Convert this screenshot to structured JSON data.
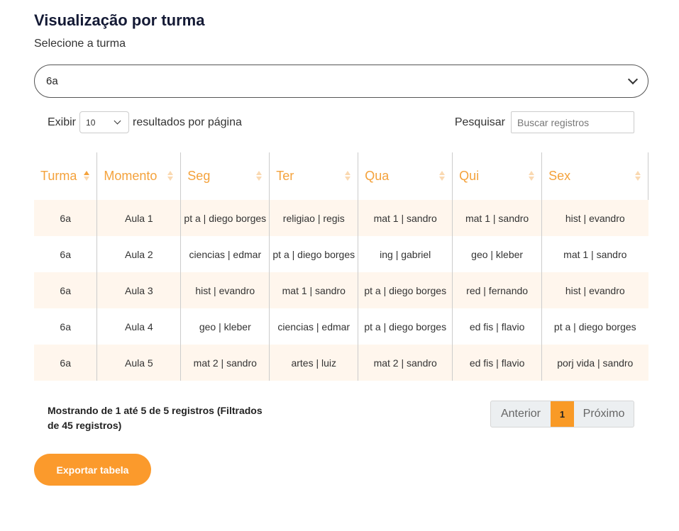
{
  "header": {
    "title": "Visualização por turma",
    "select_label": "Selecione a turma",
    "selected_class": "6a"
  },
  "controls": {
    "show_label": "Exibir",
    "page_size": "10",
    "per_page_label": "resultados por página",
    "search_label": "Pesquisar",
    "search_placeholder": "Buscar registros"
  },
  "table": {
    "columns": [
      "Turma",
      "Momento",
      "Seg",
      "Ter",
      "Qua",
      "Qui",
      "Sex"
    ],
    "rows": [
      [
        "6a",
        "Aula 1",
        "pt a | diego borges",
        "religiao | regis",
        "mat 1 | sandro",
        "mat 1 | sandro",
        "hist | evandro"
      ],
      [
        "6a",
        "Aula 2",
        "ciencias | edmar",
        "pt a | diego borges",
        "ing | gabriel",
        "geo | kleber",
        "mat 1 | sandro"
      ],
      [
        "6a",
        "Aula 3",
        "hist | evandro",
        "mat 1 | sandro",
        "pt a | diego borges",
        "red | fernando",
        "hist | evandro"
      ],
      [
        "6a",
        "Aula 4",
        "geo | kleber",
        "ciencias | edmar",
        "pt a | diego borges",
        "ed fis | flavio",
        "pt a | diego borges"
      ],
      [
        "6a",
        "Aula 5",
        "mat 2 | sandro",
        "artes | luiz",
        "mat 2 | sandro",
        "ed fis | flavio",
        "porj vida | sandro"
      ]
    ]
  },
  "footer": {
    "info": "Mostrando de 1 até 5 de 5 registros (Filtrados de 45 registros)",
    "prev_label": "Anterior",
    "current_page": "1",
    "next_label": "Próximo",
    "export_label": "Exportar tabela"
  },
  "colors": {
    "accent": "#f99a26",
    "header_text": "#f4a23c",
    "row_stripe": "#fff6ed",
    "title": "#141a35"
  }
}
